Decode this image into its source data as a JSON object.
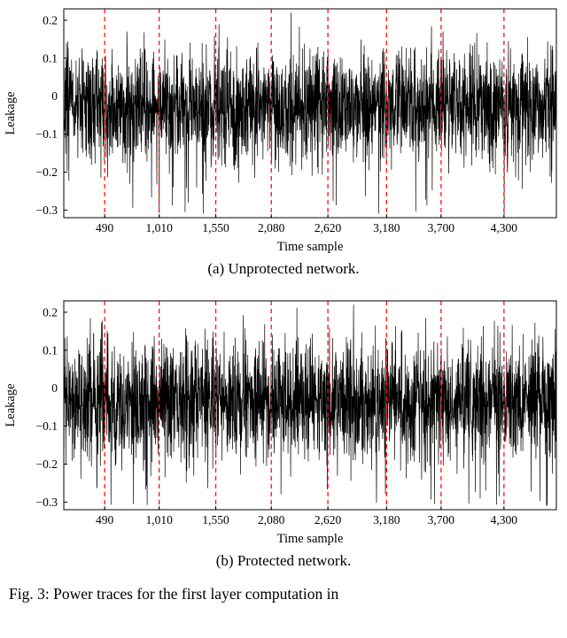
{
  "figure": {
    "caption": "Fig. 3: Power traces for the first layer computation in",
    "subfigures": [
      {
        "label": "(a) Unprotected network."
      },
      {
        "label": "(b) Protected network."
      }
    ]
  },
  "chart_data": [
    {
      "type": "line",
      "title": "(a) Unprotected network.",
      "xlabel": "Time sample",
      "ylabel": "Leakage",
      "xlim": [
        100,
        4800
      ],
      "ylim": [
        -0.32,
        0.23
      ],
      "x_ticks": [
        490,
        1010,
        1550,
        2080,
        2620,
        3180,
        3700,
        4300
      ],
      "x_tick_labels": [
        "490",
        "1,010",
        "1,550",
        "2,080",
        "2,620",
        "3,180",
        "3,700",
        "4,300"
      ],
      "y_ticks": [
        0.2,
        0.1,
        0,
        -0.1,
        -0.2,
        -0.3
      ],
      "y_tick_labels": [
        "0.2",
        "0.1",
        "0",
        "−0.1",
        "−0.2",
        "−0.3"
      ],
      "grid": false,
      "legend": "none",
      "vlines": {
        "x": [
          490,
          1010,
          1550,
          2080,
          2620,
          3180,
          3700,
          4300
        ],
        "color": "#ff1111",
        "style": "dashed"
      },
      "series": [
        {
          "name": "leakage-trace",
          "color": "#000000",
          "description": "dense zero-mean noise trace spanning full x-range",
          "n_points": 2600,
          "mean": -0.025,
          "std": 0.07,
          "min": -0.31,
          "max": 0.22,
          "seed": 7
        }
      ]
    },
    {
      "type": "line",
      "title": "(b) Protected network.",
      "xlabel": "Time sample",
      "ylabel": "Leakage",
      "xlim": [
        100,
        4800
      ],
      "ylim": [
        -0.32,
        0.23
      ],
      "x_ticks": [
        490,
        1010,
        1550,
        2080,
        2620,
        3180,
        3700,
        4300
      ],
      "x_tick_labels": [
        "490",
        "1,010",
        "1,550",
        "2,080",
        "2,620",
        "3,180",
        "3,700",
        "4,300"
      ],
      "y_ticks": [
        0.2,
        0.1,
        0,
        -0.1,
        -0.2,
        -0.3
      ],
      "y_tick_labels": [
        "0.2",
        "0.1",
        "0",
        "−0.1",
        "−0.2",
        "−0.3"
      ],
      "grid": false,
      "legend": "none",
      "vlines": {
        "x": [
          490,
          1010,
          1550,
          2080,
          2620,
          3180,
          3700,
          4300
        ],
        "color": "#ff1111",
        "style": "dashed"
      },
      "series": [
        {
          "name": "leakage-trace",
          "color": "#000000",
          "description": "dense zero-mean noise trace spanning full x-range",
          "n_points": 2600,
          "mean": -0.032,
          "std": 0.075,
          "min": -0.31,
          "max": 0.22,
          "seed": 23
        }
      ]
    }
  ]
}
